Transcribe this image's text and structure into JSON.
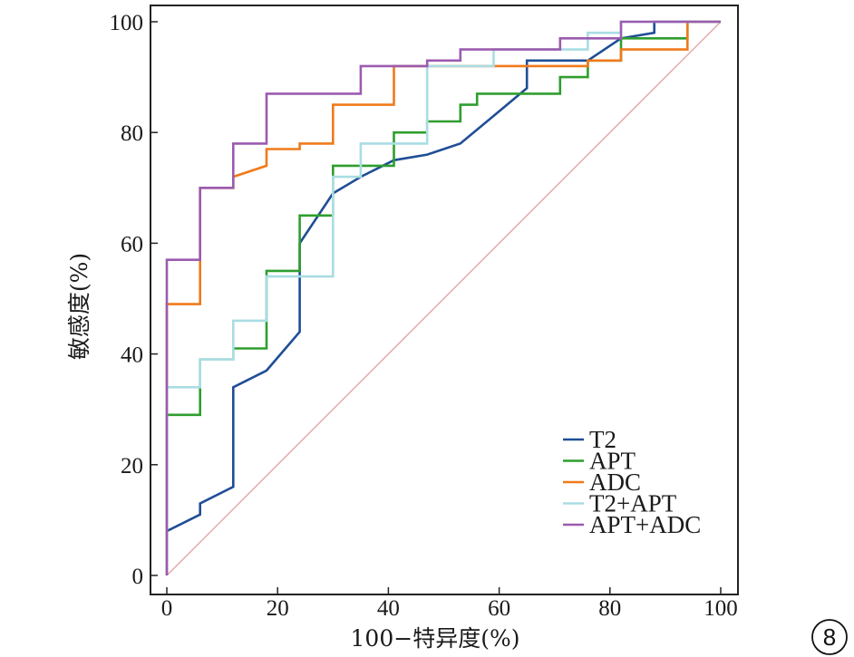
{
  "chart_data": {
    "type": "line",
    "title": "",
    "xlabel": "100−特异度(%)",
    "ylabel": "敏感度(%)",
    "xlim": [
      0,
      100
    ],
    "ylim": [
      0,
      100
    ],
    "xticks": [
      0,
      20,
      40,
      60,
      80,
      100
    ],
    "yticks": [
      0,
      20,
      40,
      60,
      80,
      100
    ],
    "reference_line": {
      "name": "chance",
      "color": "#e0aaaa",
      "points": [
        [
          0,
          0
        ],
        [
          100,
          100
        ]
      ]
    },
    "legend_position": "bottom-right",
    "series": [
      {
        "name": "T2",
        "color": "#1f4e96",
        "step": false,
        "points": [
          [
            0,
            0
          ],
          [
            0,
            8
          ],
          [
            6,
            11
          ],
          [
            6,
            13
          ],
          [
            12,
            16
          ],
          [
            12,
            34
          ],
          [
            18,
            37
          ],
          [
            24,
            44
          ],
          [
            24,
            60
          ],
          [
            30,
            69
          ],
          [
            35,
            72
          ],
          [
            41,
            75
          ],
          [
            47,
            76
          ],
          [
            53,
            78
          ],
          [
            59,
            83
          ],
          [
            65,
            88
          ],
          [
            65,
            93
          ],
          [
            71,
            93
          ],
          [
            76,
            93
          ],
          [
            82,
            97
          ],
          [
            88,
            98
          ],
          [
            88,
            100
          ],
          [
            100,
            100
          ]
        ]
      },
      {
        "name": "APT",
        "color": "#2e9e2e",
        "step": true,
        "points": [
          [
            0,
            0
          ],
          [
            0,
            29
          ],
          [
            6,
            29
          ],
          [
            6,
            39
          ],
          [
            12,
            39
          ],
          [
            12,
            41
          ],
          [
            18,
            41
          ],
          [
            18,
            55
          ],
          [
            24,
            55
          ],
          [
            24,
            65
          ],
          [
            30,
            65
          ],
          [
            30,
            74
          ],
          [
            41,
            74
          ],
          [
            41,
            80
          ],
          [
            47,
            80
          ],
          [
            47,
            82
          ],
          [
            53,
            82
          ],
          [
            53,
            85
          ],
          [
            56,
            85
          ],
          [
            56,
            87
          ],
          [
            65,
            87
          ],
          [
            71,
            87
          ],
          [
            71,
            90
          ],
          [
            76,
            90
          ],
          [
            76,
            93
          ],
          [
            82,
            93
          ],
          [
            82,
            97
          ],
          [
            94,
            97
          ],
          [
            94,
            100
          ],
          [
            100,
            100
          ]
        ]
      },
      {
        "name": "ADC",
        "color": "#f07a1a",
        "step": true,
        "points": [
          [
            0,
            0
          ],
          [
            0,
            49
          ],
          [
            6,
            49
          ],
          [
            6,
            70
          ],
          [
            12,
            70
          ],
          [
            12,
            72
          ],
          [
            18,
            74
          ],
          [
            18,
            77
          ],
          [
            24,
            77
          ],
          [
            24,
            78
          ],
          [
            30,
            78
          ],
          [
            30,
            85
          ],
          [
            41,
            85
          ],
          [
            41,
            92
          ],
          [
            59,
            92
          ],
          [
            76,
            92
          ],
          [
            76,
            93
          ],
          [
            82,
            93
          ],
          [
            82,
            95
          ],
          [
            94,
            95
          ],
          [
            94,
            100
          ],
          [
            100,
            100
          ]
        ]
      },
      {
        "name": "T2+APT",
        "color": "#a9dde3",
        "step": true,
        "points": [
          [
            0,
            0
          ],
          [
            0,
            34
          ],
          [
            6,
            34
          ],
          [
            6,
            39
          ],
          [
            12,
            39
          ],
          [
            12,
            46
          ],
          [
            18,
            46
          ],
          [
            18,
            54
          ],
          [
            30,
            54
          ],
          [
            30,
            72
          ],
          [
            35,
            72
          ],
          [
            35,
            78
          ],
          [
            47,
            78
          ],
          [
            47,
            92
          ],
          [
            59,
            92
          ],
          [
            59,
            95
          ],
          [
            76,
            95
          ],
          [
            76,
            98
          ],
          [
            82,
            98
          ],
          [
            82,
            100
          ],
          [
            100,
            100
          ]
        ]
      },
      {
        "name": "APT+ADC",
        "color": "#9b5bb0",
        "step": true,
        "points": [
          [
            0,
            0
          ],
          [
            0,
            57
          ],
          [
            6,
            57
          ],
          [
            6,
            70
          ],
          [
            12,
            70
          ],
          [
            12,
            78
          ],
          [
            18,
            78
          ],
          [
            18,
            87
          ],
          [
            35,
            87
          ],
          [
            35,
            92
          ],
          [
            47,
            92
          ],
          [
            47,
            93
          ],
          [
            53,
            93
          ],
          [
            53,
            95
          ],
          [
            71,
            95
          ],
          [
            71,
            97
          ],
          [
            82,
            97
          ],
          [
            82,
            100
          ],
          [
            100,
            100
          ]
        ]
      }
    ]
  },
  "badge": {
    "label": "8"
  }
}
